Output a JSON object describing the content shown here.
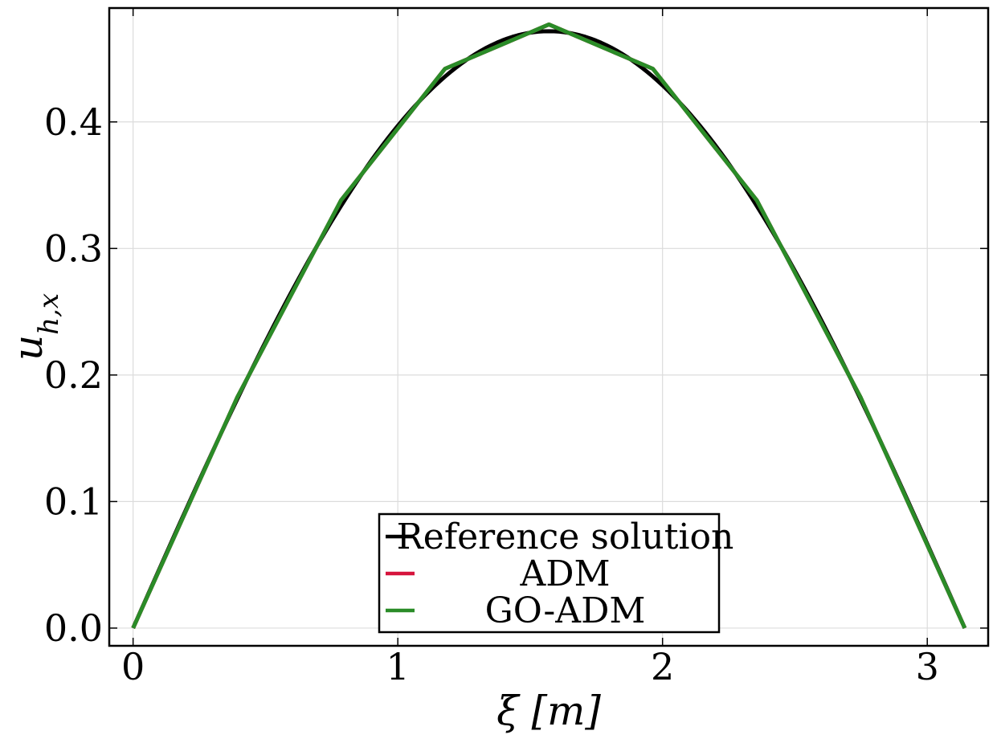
{
  "chart_data": {
    "type": "line",
    "title": "",
    "xlabel": "ξ [m]",
    "ylabel": "u_h,x",
    "ylabel_main": "u",
    "ylabel_sub": "h,x",
    "xlim": [
      -0.09,
      3.23
    ],
    "ylim": [
      -0.014,
      0.49
    ],
    "xticks": [
      0,
      1,
      2,
      3
    ],
    "xtick_labels": [
      "0",
      "1",
      "2",
      "3"
    ],
    "yticks": [
      0.0,
      0.1,
      0.2,
      0.3,
      0.4
    ],
    "ytick_labels": [
      "0.0",
      "0.1",
      "0.2",
      "0.3",
      "0.4"
    ],
    "grid": true,
    "legend_position": "bottom-center",
    "series": [
      {
        "name": "Reference solution",
        "color": "#000000",
        "kind": "smooth",
        "x": [
          0.0,
          0.1571,
          0.3142,
          0.4712,
          0.6283,
          0.7854,
          0.9425,
          1.0996,
          1.2566,
          1.4137,
          1.5708,
          1.7279,
          1.885,
          2.042,
          2.1991,
          2.3562,
          2.5133,
          2.6704,
          2.8274,
          2.9845,
          3.1416
        ],
        "y": [
          0.0,
          0.0738,
          0.1458,
          0.2142,
          0.2773,
          0.3336,
          0.3816,
          0.4203,
          0.4486,
          0.4659,
          0.4717,
          0.4659,
          0.4486,
          0.4203,
          0.3816,
          0.3336,
          0.2773,
          0.2142,
          0.1458,
          0.0738,
          0.0
        ]
      },
      {
        "name": "ADM",
        "color": "#d6143c",
        "kind": "piecewise",
        "x": [
          0.0,
          0.3927,
          0.7854,
          1.1781,
          1.5708,
          1.9635,
          2.3562,
          2.7489,
          3.1416
        ],
        "y": [
          0.0,
          0.182,
          0.338,
          0.442,
          0.477,
          0.442,
          0.338,
          0.182,
          0.0
        ]
      },
      {
        "name": "GO-ADM",
        "color": "#2a8c28",
        "kind": "piecewise",
        "x": [
          0.0,
          0.3927,
          0.7854,
          1.1781,
          1.5708,
          1.9635,
          2.3562,
          2.7489,
          3.1416
        ],
        "y": [
          0.0,
          0.182,
          0.338,
          0.442,
          0.477,
          0.442,
          0.338,
          0.182,
          0.0
        ]
      }
    ]
  }
}
